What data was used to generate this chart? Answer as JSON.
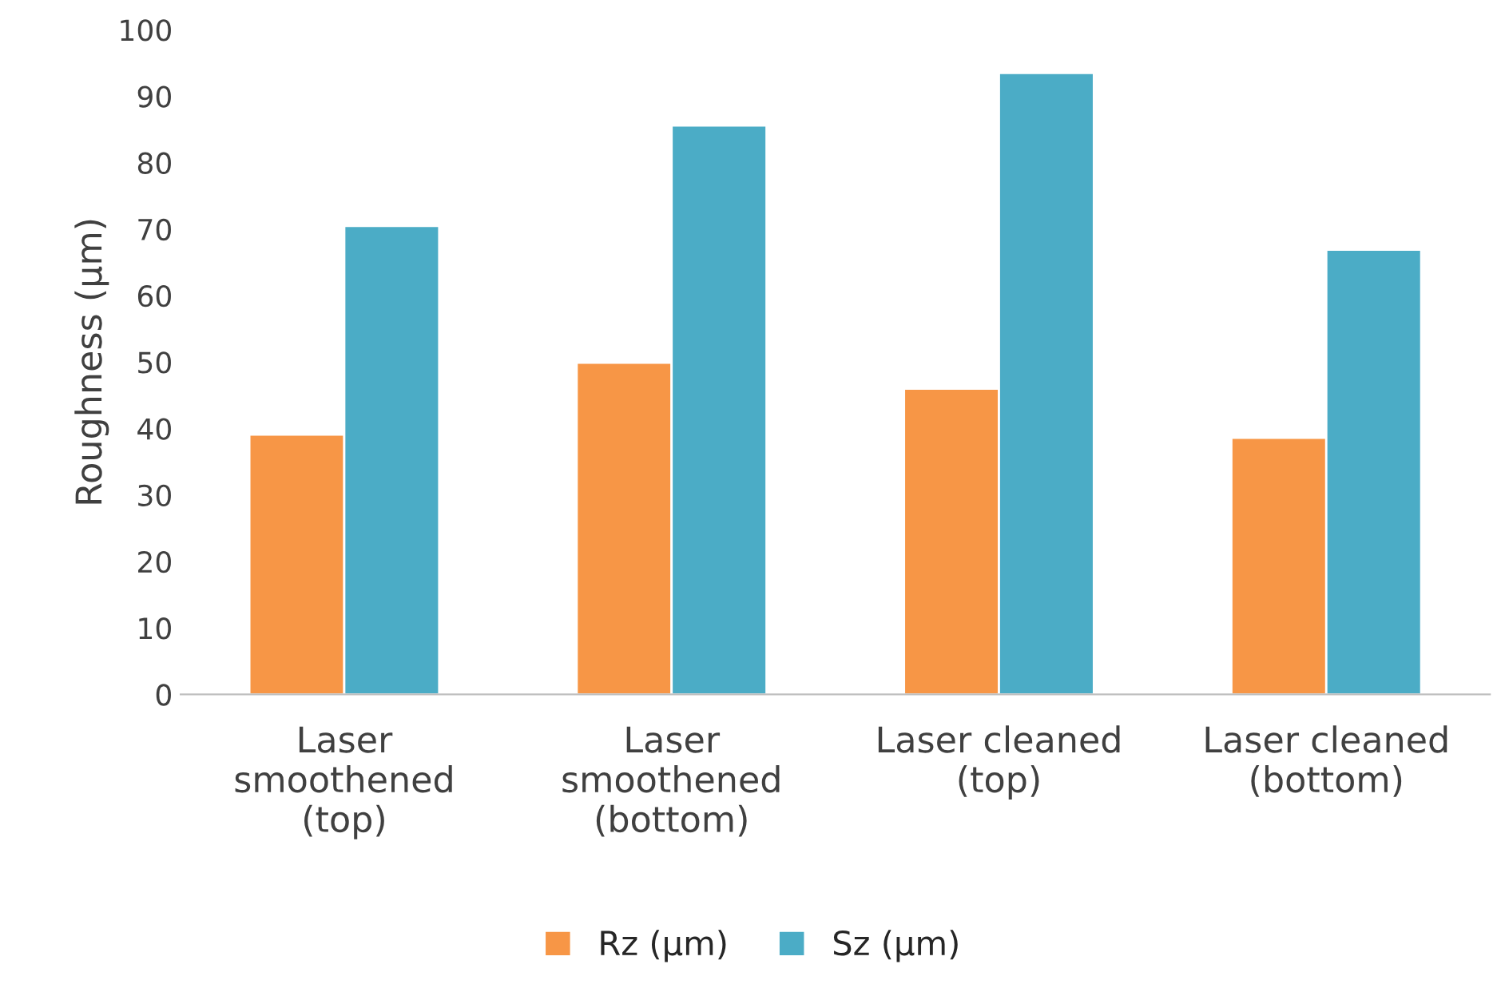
{
  "chart_data": {
    "type": "bar",
    "ylabel": "Roughness (µm)",
    "categories": [
      "Laser\nsmoothened\n(top)",
      "Laser\nsmoothened\n(bottom)",
      "Laser cleaned\n(top)",
      "Laser cleaned\n(bottom)"
    ],
    "series": [
      {
        "name": "Rz (µm)",
        "color": "#f79646",
        "values": [
          39.1,
          49.9,
          46.0,
          38.6
        ]
      },
      {
        "name": "Sz (µm)",
        "color": "#4bacc6",
        "values": [
          70.5,
          85.6,
          93.5,
          66.9
        ]
      }
    ],
    "ylim": [
      0,
      100
    ],
    "yticks": [
      0,
      10,
      20,
      30,
      40,
      50,
      60,
      70,
      80,
      90,
      100
    ],
    "grid": false,
    "legend": "bottom"
  }
}
